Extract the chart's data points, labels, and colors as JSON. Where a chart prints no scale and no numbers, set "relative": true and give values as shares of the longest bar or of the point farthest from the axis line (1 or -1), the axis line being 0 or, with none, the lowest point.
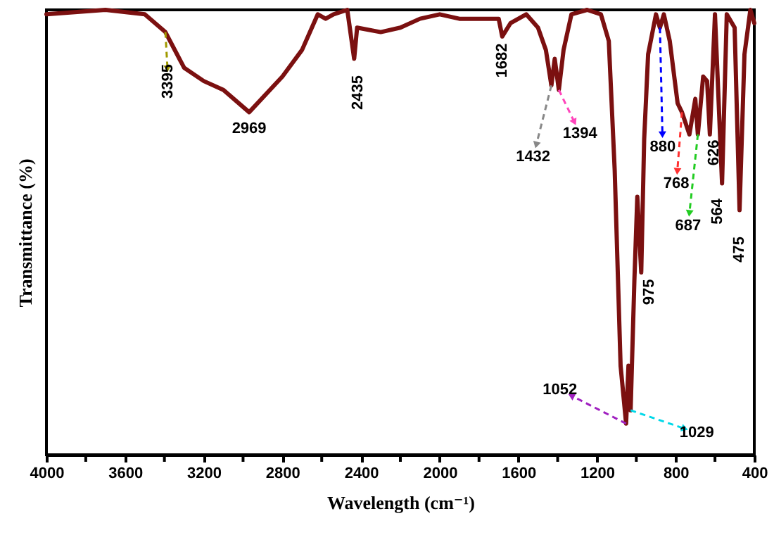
{
  "chart_data": {
    "type": "line",
    "relative": true,
    "xlabel": "Wavelength (cm⁻¹)",
    "ylabel": "Transmittance (%)",
    "xlim": [
      4000,
      400
    ],
    "xticks": [
      4000,
      {
        "value": 3800,
        "label": null
      },
      3600,
      {
        "value": 3400,
        "label": null
      },
      3200,
      {
        "value": 3000,
        "label": null
      },
      2800,
      {
        "value": 2600,
        "label": null
      },
      2400,
      {
        "value": 2200,
        "label": null
      },
      2000,
      {
        "value": 1800,
        "label": null
      },
      1600,
      {
        "value": 1400,
        "label": null
      },
      1200,
      {
        "value": 1000,
        "label": null
      },
      800,
      {
        "value": 600,
        "label": null
      },
      400
    ],
    "grid": false,
    "series": [
      {
        "color": "#7b1010",
        "x": [
          4000,
          3700,
          3500,
          3395,
          3300,
          3200,
          3100,
          2969,
          2800,
          2700,
          2620,
          2580,
          2540,
          2470,
          2435,
          2420,
          2300,
          2200,
          2100,
          2000,
          1900,
          1800,
          1700,
          1682,
          1640,
          1560,
          1500,
          1460,
          1432,
          1415,
          1394,
          1370,
          1330,
          1250,
          1180,
          1140,
          1110,
          1080,
          1052,
          1040,
          1029,
          1010,
          995,
          975,
          960,
          940,
          900,
          880,
          860,
          830,
          790,
          768,
          730,
          700,
          687,
          660,
          640,
          626,
          600,
          564,
          540,
          500,
          475,
          450,
          420,
          400
        ],
        "values": [
          0.99,
          1.0,
          0.99,
          0.95,
          0.87,
          0.84,
          0.82,
          0.77,
          0.85,
          0.91,
          0.99,
          0.98,
          0.99,
          1.0,
          0.89,
          0.96,
          0.95,
          0.96,
          0.98,
          0.99,
          0.98,
          0.98,
          0.98,
          0.94,
          0.97,
          0.99,
          0.96,
          0.91,
          0.83,
          0.89,
          0.82,
          0.91,
          0.99,
          1.0,
          0.99,
          0.93,
          0.64,
          0.2,
          0.07,
          0.2,
          0.1,
          0.39,
          0.58,
          0.41,
          0.71,
          0.9,
          0.99,
          0.96,
          0.99,
          0.93,
          0.79,
          0.77,
          0.72,
          0.8,
          0.72,
          0.85,
          0.84,
          0.72,
          0.99,
          0.61,
          0.99,
          0.96,
          0.55,
          0.9,
          1.0,
          0.97
        ]
      }
    ],
    "annotations": [
      {
        "text": "3395",
        "x": 3395,
        "y": 0.95
      },
      {
        "text": "2969",
        "x": 2969,
        "y": 0.77
      },
      {
        "text": "2435",
        "x": 2435,
        "y": 0.89
      },
      {
        "text": "1682",
        "x": 1682,
        "y": 0.94
      },
      {
        "text": "1432",
        "x": 1432,
        "y": 0.83
      },
      {
        "text": "1394",
        "x": 1394,
        "y": 0.82
      },
      {
        "text": "1052",
        "x": 1052,
        "y": 0.07
      },
      {
        "text": "1029",
        "x": 1029,
        "y": 0.1
      },
      {
        "text": "975",
        "x": 975,
        "y": 0.41
      },
      {
        "text": "880",
        "x": 880,
        "y": 0.96
      },
      {
        "text": "768",
        "x": 768,
        "y": 0.77
      },
      {
        "text": "687",
        "x": 687,
        "y": 0.72
      },
      {
        "text": "626",
        "x": 626,
        "y": 0.72
      },
      {
        "text": "564",
        "x": 564,
        "y": 0.61
      },
      {
        "text": "475",
        "x": 475,
        "y": 0.55
      }
    ]
  }
}
